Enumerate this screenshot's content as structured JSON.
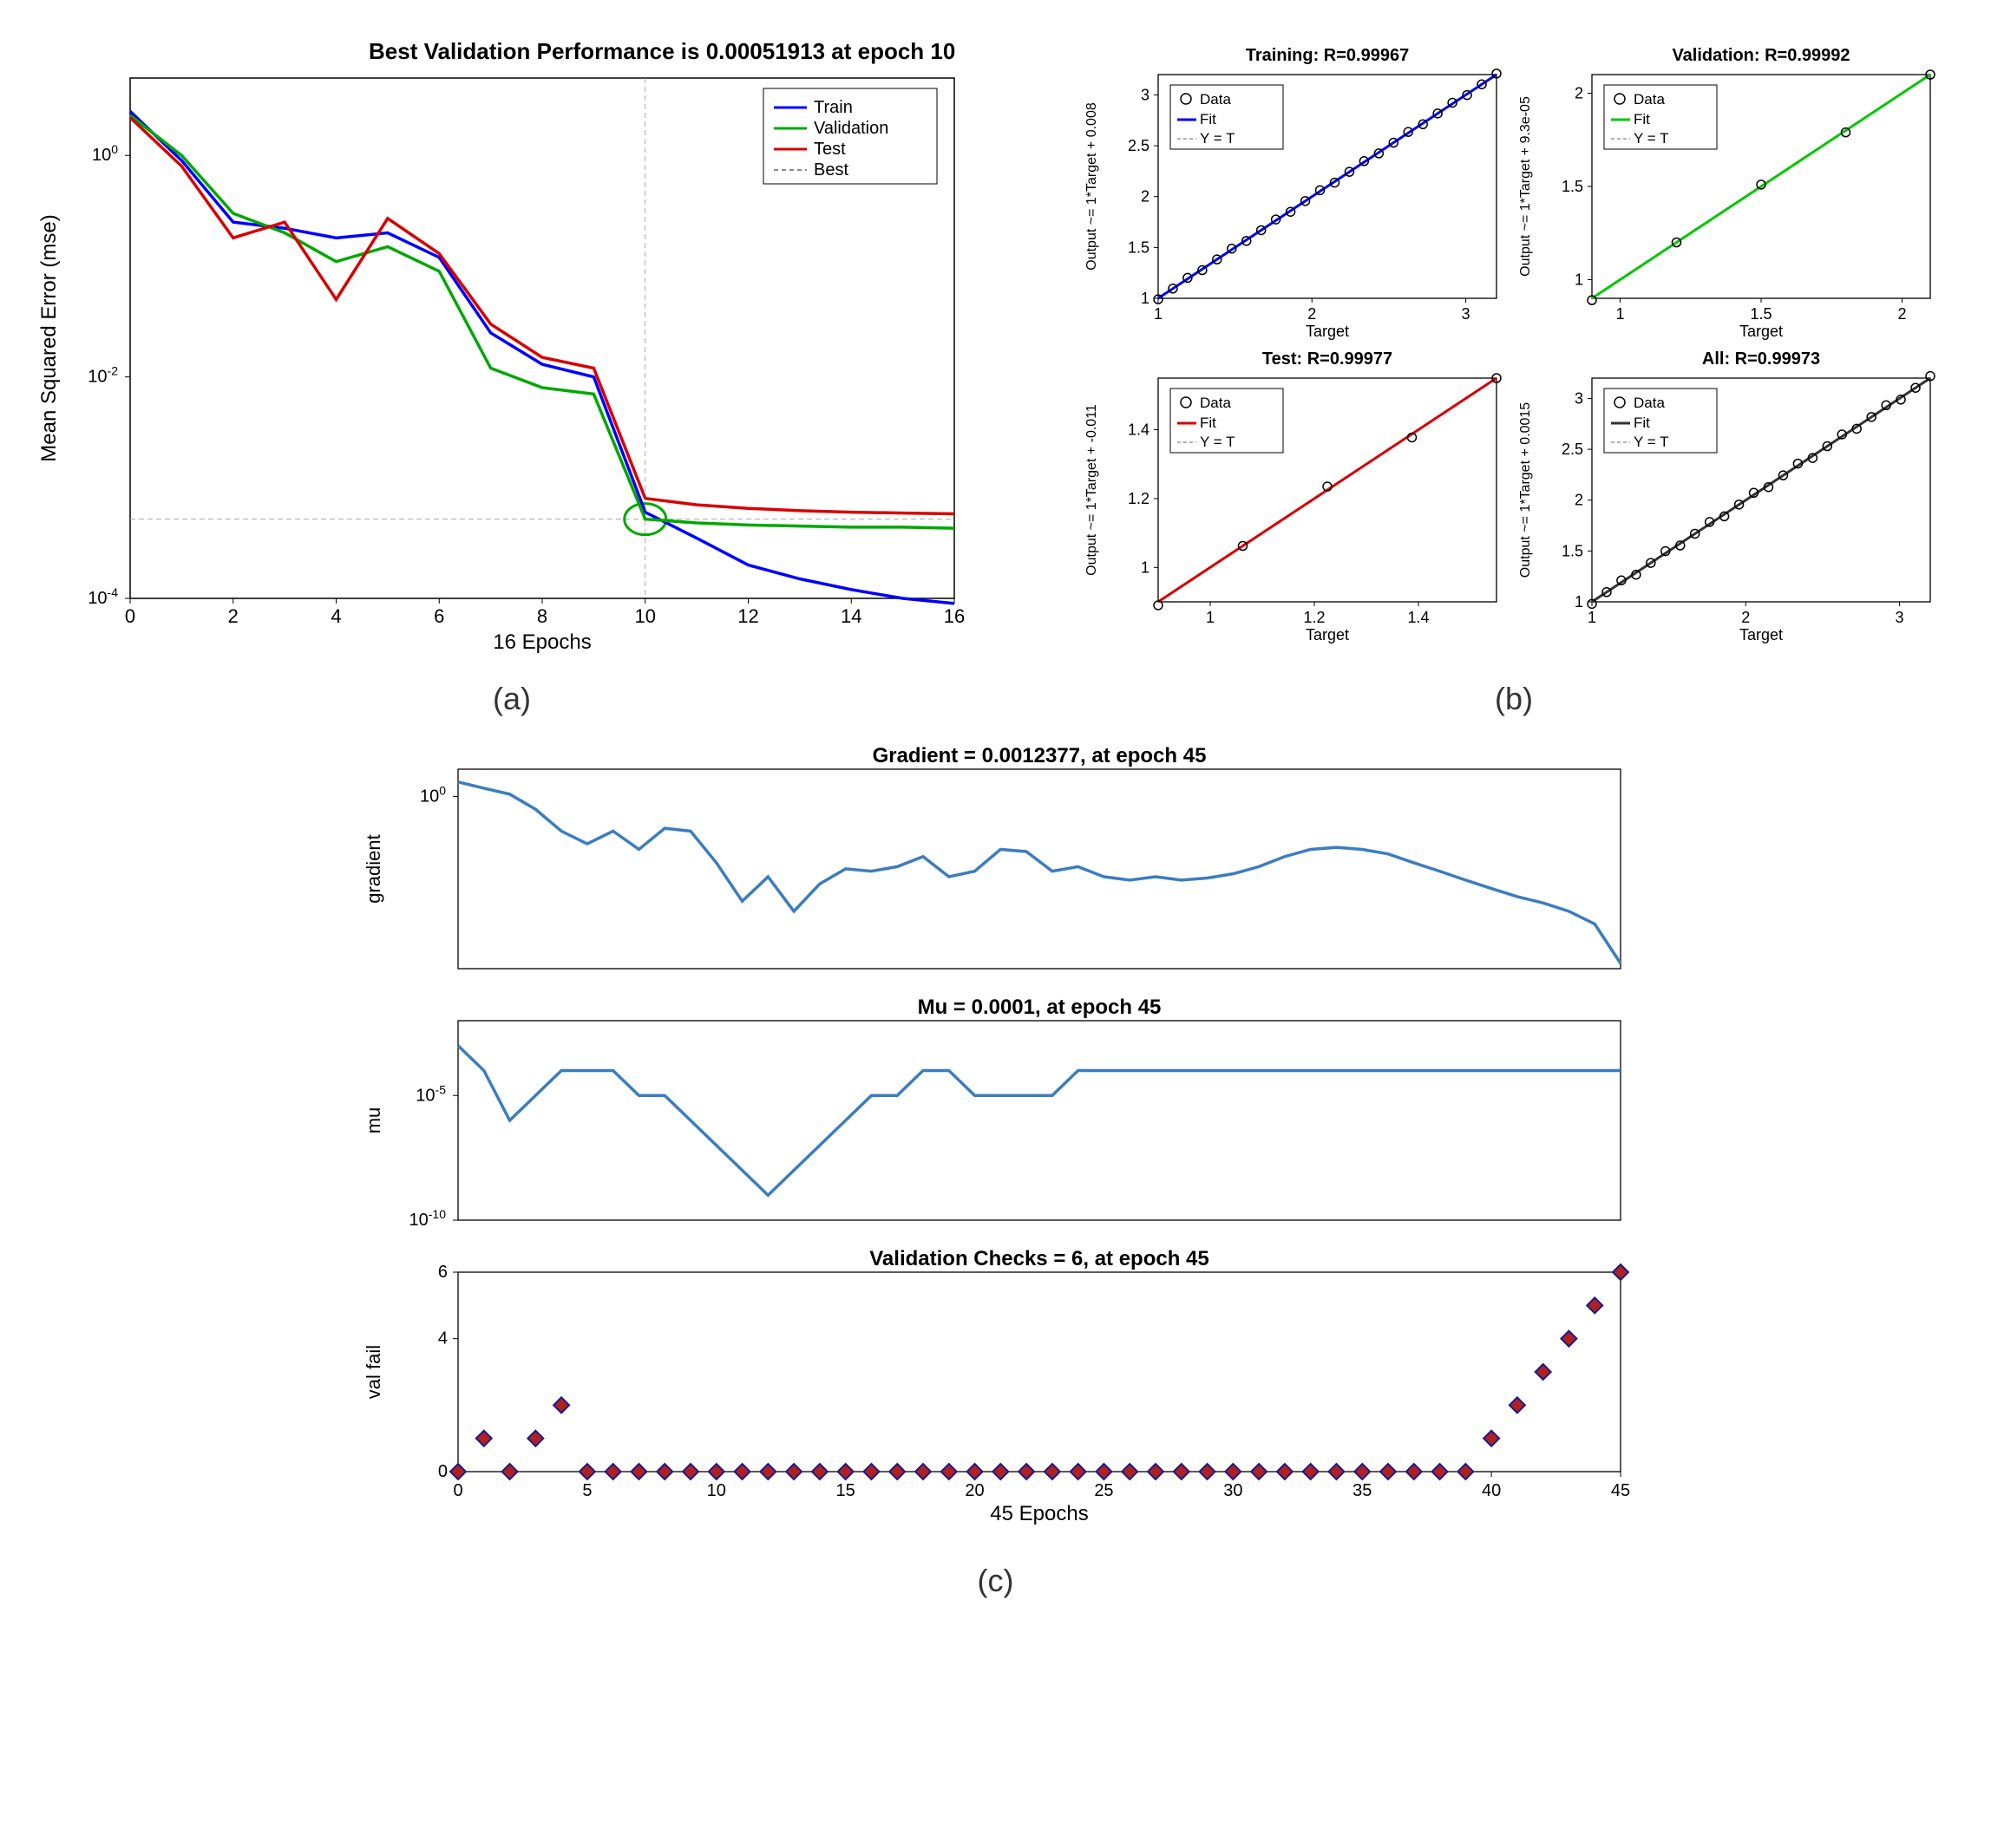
{
  "colors": {
    "train": "#0000ff",
    "validation": "#00a800",
    "test": "#d80000",
    "best": "#888888",
    "fit_all": "#333333",
    "gradient": "#3b7dbf",
    "mu": "#3b7dbf",
    "valfail_marker": "#b02020",
    "valfail_edge": "#1a1a8a",
    "box": "#000000",
    "bg": "#ffffff"
  },
  "panelA": {
    "title": "Best Validation Performance is 0.00051913 at epoch 10",
    "xlabel": "16 Epochs",
    "ylabel": "Mean Squared Error (mse)",
    "xlim": [
      0,
      16
    ],
    "xticks": [
      0,
      2,
      4,
      6,
      8,
      10,
      12,
      14,
      16
    ],
    "yticks_log": [
      0.0001,
      0.01,
      1.0
    ],
    "ytick_labels": [
      "10^-4",
      "10^-2",
      "10^0"
    ],
    "best_epoch": 10,
    "best_y": 0.00051913,
    "legend": [
      "Train",
      "Validation",
      "Test",
      "Best"
    ],
    "series": {
      "train": [
        2.5,
        0.9,
        0.25,
        0.22,
        0.18,
        0.2,
        0.12,
        0.025,
        0.013,
        0.01,
        0.0006,
        0.00035,
        0.0002,
        0.00015,
        0.00012,
        0.0001,
        9e-05
      ],
      "validation": [
        2.3,
        1.0,
        0.3,
        0.2,
        0.11,
        0.15,
        0.09,
        0.012,
        0.008,
        0.007,
        0.00052,
        0.00048,
        0.00046,
        0.00045,
        0.00044,
        0.00044,
        0.00043
      ],
      "test": [
        2.2,
        0.8,
        0.18,
        0.25,
        0.05,
        0.27,
        0.13,
        0.03,
        0.015,
        0.012,
        0.0008,
        0.0007,
        0.00065,
        0.00062,
        0.0006,
        0.00059,
        0.00058
      ]
    }
  },
  "panelB": {
    "plots": [
      {
        "title": "Training: R=0.99967",
        "ylabel": "Output ~= 1*Target + 0.008",
        "xlabel": "Target",
        "color": "#0000ff",
        "xlim": [
          1,
          3.2
        ],
        "xticks": [
          1,
          2,
          3
        ],
        "yticks": [
          1,
          1.5,
          2,
          2.5,
          3
        ]
      },
      {
        "title": "Validation: R=0.99992",
        "ylabel": "Output ~= 1*Target + 9.3e-05",
        "xlabel": "Target",
        "color": "#00c800",
        "xlim": [
          0.9,
          2.1
        ],
        "xticks": [
          1,
          1.5,
          2
        ],
        "yticks": [
          1,
          1.5,
          2
        ]
      },
      {
        "title": "Test: R=0.99977",
        "ylabel": "Output ~= 1*Target + -0.011",
        "xlabel": "Target",
        "color": "#d80000",
        "xlim": [
          0.9,
          1.55
        ],
        "xticks": [
          1,
          1.2,
          1.4
        ],
        "yticks": [
          1,
          1.2,
          1.4
        ]
      },
      {
        "title": "All: R=0.99973",
        "ylabel": "Output ~= 1*Target + 0.0015",
        "xlabel": "Target",
        "color": "#333333",
        "xlim": [
          1,
          3.2
        ],
        "xticks": [
          1,
          2,
          3
        ],
        "yticks": [
          1,
          1.5,
          2,
          2.5,
          3
        ]
      }
    ],
    "legend_items": [
      "Data",
      "Fit",
      "Y = T"
    ]
  },
  "panelC": {
    "xlabel": "45 Epochs",
    "xlim": [
      0,
      45
    ],
    "xticks": [
      0,
      5,
      10,
      15,
      20,
      25,
      30,
      35,
      40,
      45
    ],
    "gradient": {
      "title": "Gradient = 0.0012377, at epoch 45",
      "ylabel": "gradient",
      "ytick_log": [
        1
      ],
      "ytick_labels": [
        "10^0"
      ],
      "values": [
        1.8,
        1.4,
        1.1,
        0.6,
        0.25,
        0.15,
        0.25,
        0.12,
        0.28,
        0.25,
        0.07,
        0.015,
        0.04,
        0.01,
        0.03,
        0.055,
        0.05,
        0.06,
        0.09,
        0.04,
        0.05,
        0.12,
        0.11,
        0.05,
        0.06,
        0.04,
        0.035,
        0.04,
        0.035,
        0.038,
        0.045,
        0.06,
        0.09,
        0.12,
        0.13,
        0.12,
        0.1,
        0.07,
        0.05,
        0.035,
        0.025,
        0.018,
        0.014,
        0.01,
        0.006,
        0.0012377
      ]
    },
    "mu": {
      "title": "Mu = 0.0001, at epoch 45",
      "ylabel": "mu",
      "ytick_log": [
        1e-10,
        1e-05
      ],
      "ytick_labels": [
        "10^-10",
        "10^-5"
      ],
      "values": [
        0.001,
        0.0001,
        1e-06,
        1e-05,
        0.0001,
        0.0001,
        0.0001,
        1e-05,
        1e-05,
        1e-06,
        1e-07,
        1e-08,
        1e-09,
        1e-08,
        1e-07,
        1e-06,
        1e-05,
        1e-05,
        0.0001,
        0.0001,
        1e-05,
        1e-05,
        1e-05,
        1e-05,
        0.0001,
        0.0001,
        0.0001,
        0.0001,
        0.0001,
        0.0001,
        0.0001,
        0.0001,
        0.0001,
        0.0001,
        0.0001,
        0.0001,
        0.0001,
        0.0001,
        0.0001,
        0.0001,
        0.0001,
        0.0001,
        0.0001,
        0.0001,
        0.0001,
        0.0001
      ]
    },
    "valfail": {
      "title": "Validation Checks = 6, at epoch 45",
      "ylabel": "val fail",
      "yticks": [
        0,
        4,
        6
      ],
      "values": [
        0,
        1,
        0,
        1,
        2,
        0,
        0,
        0,
        0,
        0,
        0,
        0,
        0,
        0,
        0,
        0,
        0,
        0,
        0,
        0,
        0,
        0,
        0,
        0,
        0,
        0,
        0,
        0,
        0,
        0,
        0,
        0,
        0,
        0,
        0,
        0,
        0,
        0,
        0,
        0,
        1,
        2,
        3,
        4,
        5,
        6
      ]
    }
  },
  "captions": {
    "a": "(a)",
    "b": "(b)",
    "c": "(c)"
  }
}
